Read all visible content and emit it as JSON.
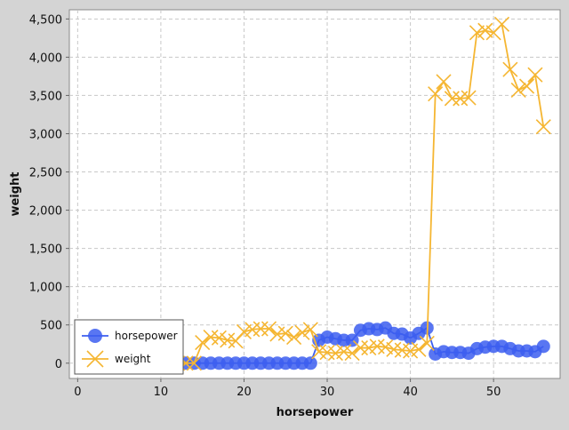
{
  "chart_data": {
    "type": "line",
    "xlabel": "horsepower",
    "ylabel": "weight",
    "xlim": [
      -1,
      58
    ],
    "ylim": [
      -200,
      4620
    ],
    "x_ticks": [
      0,
      10,
      20,
      30,
      40,
      50
    ],
    "y_ticks": [
      0,
      500,
      1000,
      1500,
      2000,
      2500,
      3000,
      3500,
      4000,
      4500
    ],
    "y_tick_labels": [
      "0",
      "500",
      "1,000",
      "1,500",
      "2,000",
      "2,500",
      "3,000",
      "3,500",
      "4,000",
      "4,500"
    ],
    "grid": true,
    "legend_position": "bottom-left",
    "series": [
      {
        "name": "horsepower",
        "color": "#3c5ef0",
        "marker": "circle",
        "x": [
          12,
          13,
          14,
          15,
          16,
          17,
          18,
          19,
          20,
          21,
          22,
          23,
          24,
          25,
          26,
          27,
          28,
          29,
          30,
          31,
          32,
          33,
          34,
          35,
          36,
          37,
          38,
          39,
          40,
          41,
          42,
          43,
          44,
          45,
          46,
          47,
          48,
          49,
          50,
          51,
          52,
          53,
          54,
          55,
          56
        ],
        "values": [
          0,
          0,
          0,
          0,
          0,
          0,
          0,
          0,
          0,
          0,
          0,
          0,
          0,
          0,
          0,
          0,
          0,
          300,
          340,
          320,
          300,
          300,
          430,
          450,
          440,
          460,
          390,
          380,
          330,
          390,
          460,
          120,
          150,
          140,
          140,
          130,
          190,
          210,
          220,
          220,
          190,
          160,
          160,
          150,
          220
        ]
      },
      {
        "name": "weight",
        "color": "#f5b632",
        "marker": "x",
        "x": [
          12,
          13,
          14,
          15,
          16,
          17,
          18,
          19,
          20,
          21,
          22,
          23,
          24,
          25,
          26,
          27,
          28,
          29,
          30,
          31,
          32,
          33,
          34,
          35,
          36,
          37,
          38,
          39,
          40,
          41,
          42,
          43,
          44,
          45,
          46,
          47,
          48,
          49,
          50,
          51,
          52,
          53,
          54,
          55,
          56
        ],
        "values": [
          0,
          0,
          0,
          270,
          340,
          330,
          300,
          290,
          410,
          440,
          450,
          450,
          380,
          390,
          340,
          400,
          440,
          150,
          140,
          130,
          150,
          130,
          200,
          200,
          220,
          210,
          180,
          170,
          160,
          180,
          260,
          3520,
          3680,
          3460,
          3460,
          3470,
          4320,
          4350,
          4320,
          4430,
          3840,
          3570,
          3620,
          3770,
          3090
        ]
      }
    ]
  }
}
